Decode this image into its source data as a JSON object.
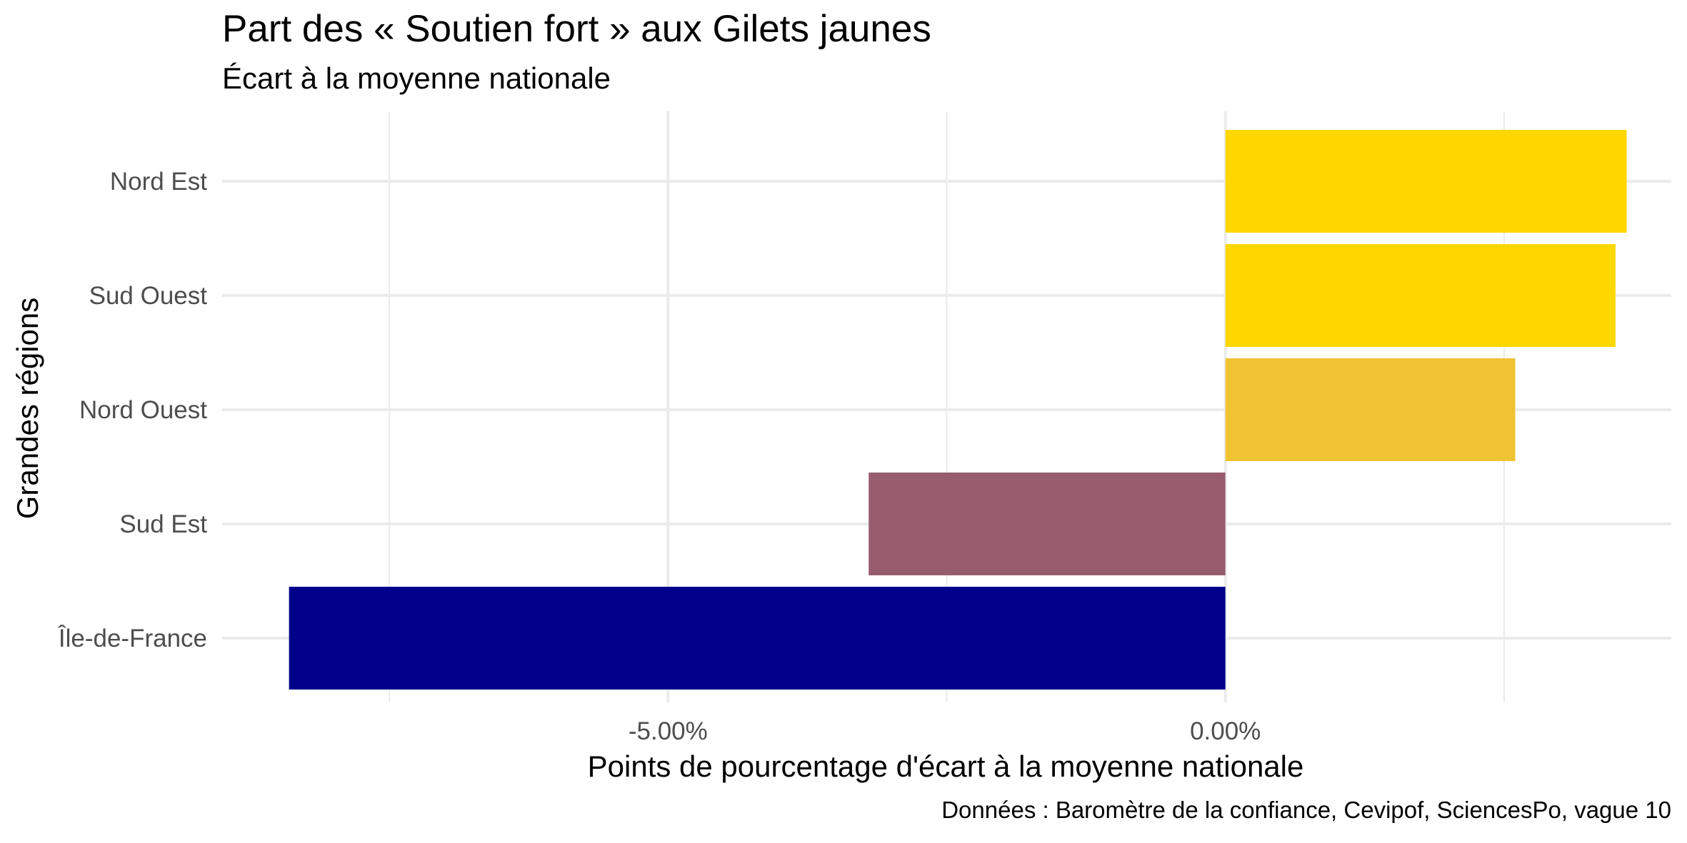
{
  "chart_data": {
    "type": "bar",
    "orientation": "horizontal",
    "title": "Part des « Soutien fort » aux Gilets jaunes",
    "subtitle": "Écart à la moyenne nationale",
    "xlabel": "Points de pourcentage d'écart à la moyenne nationale",
    "ylabel": "Grandes régions",
    "caption": "Données : Baromètre de la confiance, Cevipof, SciencesPo, vague 10",
    "categories": [
      "Nord Est",
      "Sud Ouest",
      "Nord Ouest",
      "Sud Est",
      "Île-de-France"
    ],
    "values": [
      3.6,
      3.5,
      2.6,
      -3.2,
      -8.4
    ],
    "bar_colors": [
      "#FFD700",
      "#FFD700",
      "#F0C332",
      "#985C6F",
      "#00008B"
    ],
    "xlim": [
      -9.0,
      4.0
    ],
    "x_ticks": [
      -5,
      0
    ],
    "x_tick_labels": [
      "-5.00%",
      "0.00%"
    ],
    "x_minor_ticks": [
      -7.5,
      -2.5,
      2.5
    ],
    "grid": true,
    "legend": "none"
  }
}
